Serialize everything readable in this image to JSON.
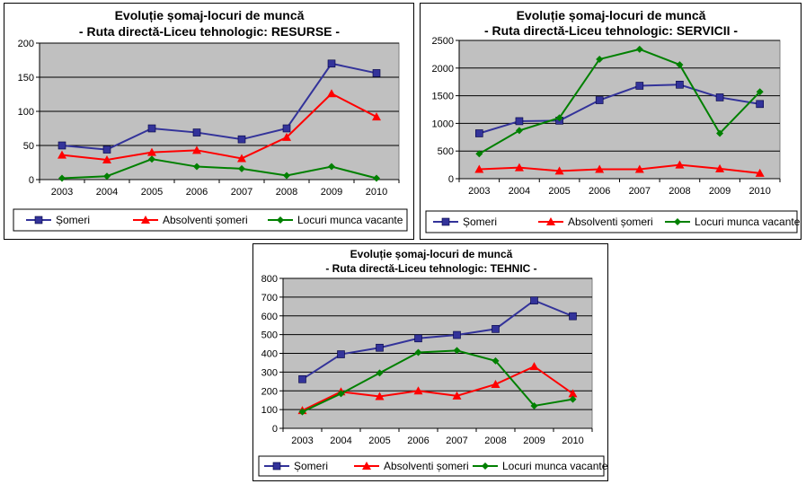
{
  "colors": {
    "plot_bg": "#c0c0c0",
    "somers": "#33339a",
    "absolventi": "#ff0000",
    "locuri": "#008000"
  },
  "chart_data": [
    {
      "type": "line",
      "title": "Evoluție șomaj-locuri de muncă",
      "subtitle": "- Ruta directă-Liceu tehnologic: RESURSE -",
      "x": [
        "2003",
        "2004",
        "2005",
        "2006",
        "2007",
        "2008",
        "2009",
        "2010"
      ],
      "ylim": [
        0,
        200
      ],
      "yticks": [
        0,
        50,
        100,
        150,
        200
      ],
      "grid": true,
      "legend_position": "bottom",
      "series": [
        {
          "name": "Șomeri",
          "color": "#33339a",
          "marker": "square",
          "values": [
            50,
            44,
            75,
            69,
            59,
            75,
            170,
            156
          ]
        },
        {
          "name": "Absolventi șomeri",
          "color": "#ff0000",
          "marker": "triangle",
          "values": [
            36,
            29,
            40,
            43,
            31,
            62,
            126,
            92
          ]
        },
        {
          "name": "Locuri munca vacante",
          "color": "#008000",
          "marker": "diamond",
          "values": [
            2,
            5,
            30,
            19,
            16,
            6,
            19,
            2
          ]
        }
      ]
    },
    {
      "type": "line",
      "title": "Evoluție șomaj-locuri de muncă",
      "subtitle": "- Ruta directă-Liceu tehnologic: SERVICII -",
      "x": [
        "2003",
        "2004",
        "2005",
        "2006",
        "2007",
        "2008",
        "2009",
        "2010"
      ],
      "ylim": [
        0,
        2500
      ],
      "yticks": [
        0,
        500,
        1000,
        1500,
        2000,
        2500
      ],
      "grid": true,
      "legend_position": "bottom",
      "series": [
        {
          "name": "Șomeri",
          "color": "#33339a",
          "marker": "square",
          "values": [
            820,
            1040,
            1050,
            1420,
            1680,
            1700,
            1470,
            1350
          ]
        },
        {
          "name": "Absolventi șomeri",
          "color": "#ff0000",
          "marker": "triangle",
          "values": [
            170,
            200,
            140,
            170,
            170,
            250,
            180,
            100
          ]
        },
        {
          "name": "Locuri munca vacante",
          "color": "#008000",
          "marker": "diamond",
          "values": [
            450,
            870,
            1100,
            2160,
            2340,
            2060,
            820,
            1570
          ]
        }
      ]
    },
    {
      "type": "line",
      "title": "Evoluție șomaj-locuri de muncă",
      "subtitle": "- Ruta directă-Liceu tehnologic: TEHNIC -",
      "x": [
        "2003",
        "2004",
        "2005",
        "2006",
        "2007",
        "2008",
        "2009",
        "2010"
      ],
      "ylim": [
        0,
        800
      ],
      "yticks": [
        0,
        100,
        200,
        300,
        400,
        500,
        600,
        700,
        800
      ],
      "grid": true,
      "legend_position": "bottom",
      "series": [
        {
          "name": "Șomeri",
          "color": "#33339a",
          "marker": "square",
          "values": [
            262,
            395,
            430,
            480,
            498,
            530,
            682,
            598
          ]
        },
        {
          "name": "Absolventi șomeri",
          "color": "#ff0000",
          "marker": "triangle",
          "values": [
            95,
            195,
            170,
            200,
            173,
            235,
            330,
            185
          ]
        },
        {
          "name": "Locuri munca vacante",
          "color": "#008000",
          "marker": "diamond",
          "values": [
            88,
            185,
            295,
            405,
            415,
            360,
            120,
            155
          ]
        }
      ]
    }
  ]
}
